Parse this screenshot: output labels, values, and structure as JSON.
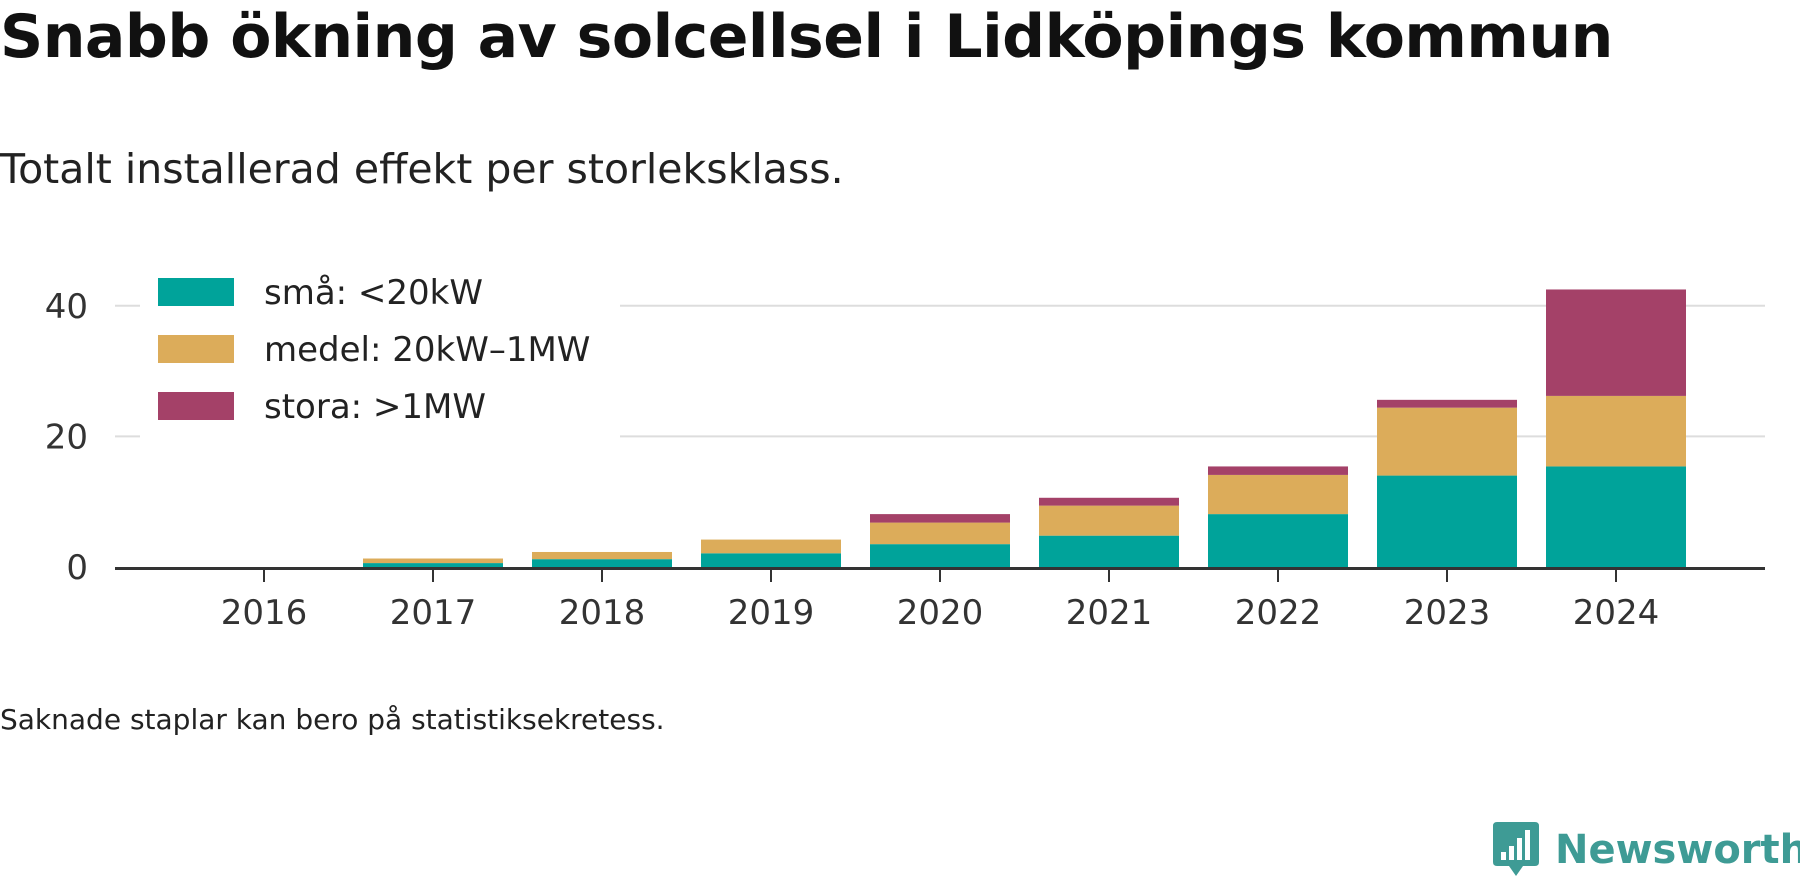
{
  "title": "Snabb ökning av solcellsel i Lidköpings kommun",
  "subtitle": "Totalt installerad effekt per storleksklass.",
  "note": "Saknade staplar kan bero på statistiksekretess.",
  "brand": {
    "name": "Newsworthy",
    "icon": "newsworthy-logo-icon",
    "color": "#3e9b95"
  },
  "chart_data": {
    "type": "bar",
    "stacked": true,
    "categories": [
      "2016",
      "2017",
      "2018",
      "2019",
      "2020",
      "2021",
      "2022",
      "2023",
      "2024"
    ],
    "series": [
      {
        "name": "små: <20kW",
        "color": "#00a39a",
        "values": [
          0.0,
          0.6,
          1.2,
          2.1,
          3.5,
          4.8,
          8.1,
          14.0,
          15.4
        ]
      },
      {
        "name": "medel: 20kW–1MW",
        "color": "#dcac5a",
        "values": [
          0.0,
          0.7,
          1.1,
          2.1,
          3.3,
          4.6,
          6.0,
          10.4,
          10.8
        ]
      },
      {
        "name": "stora: >1MW",
        "color": "#a44168",
        "values": [
          0.0,
          0.0,
          0.0,
          0.0,
          1.3,
          1.2,
          1.3,
          1.2,
          16.3
        ]
      }
    ],
    "y_ticks": [
      0,
      20,
      40
    ],
    "ylim": [
      0,
      42.5
    ],
    "xlabel": "",
    "ylabel": "",
    "grid": true,
    "legend_position": "top-left"
  }
}
